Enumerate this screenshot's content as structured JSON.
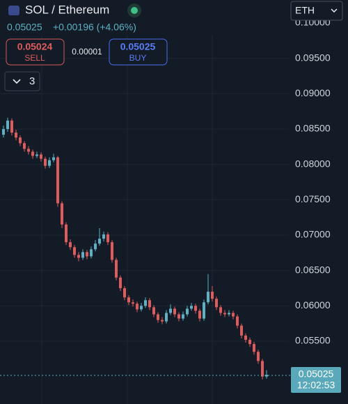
{
  "header": {
    "title": "SOL / Ethereum",
    "price": "0.05025",
    "change": "+0.00196 (+4.06%)",
    "sell_price": "0.05024",
    "sell_label": "SELL",
    "spread": "0.00001",
    "buy_price": "0.05025",
    "buy_label": "BUY",
    "interval": "3",
    "currency": "ETH",
    "price_tag": "0.05025",
    "time_tag": "12:02:53"
  },
  "chart_data": {
    "type": "candlestick",
    "up_color": "#5eb0c2",
    "down_color": "#e05c5c",
    "grid": true,
    "ylim": [
      0.04612,
      0.10325
    ],
    "yticks": [
      {
        "value": 0.1,
        "label": "0.10000"
      },
      {
        "value": 0.095,
        "label": "0.09500"
      },
      {
        "value": 0.09,
        "label": "0.09000"
      },
      {
        "value": 0.085,
        "label": "0.08500"
      },
      {
        "value": 0.08,
        "label": "0.08000"
      },
      {
        "value": 0.075,
        "label": "0.07500"
      },
      {
        "value": 0.07,
        "label": "0.07000"
      },
      {
        "value": 0.065,
        "label": "0.06500"
      },
      {
        "value": 0.06,
        "label": "0.06000"
      },
      {
        "value": 0.055,
        "label": "0.05500"
      }
    ],
    "open": [
      0.0842,
      0.085,
      0.0862,
      0.0845,
      0.0838,
      0.083,
      0.0822,
      0.0818,
      0.0812,
      0.0814,
      0.0808,
      0.0798,
      0.0806,
      0.081,
      0.0745,
      0.0715,
      0.069,
      0.0683,
      0.0672,
      0.0668,
      0.0676,
      0.067,
      0.068,
      0.0688,
      0.0695,
      0.0701,
      0.069,
      0.0665,
      0.064,
      0.0625,
      0.0612,
      0.0605,
      0.0603,
      0.0595,
      0.06,
      0.0608,
      0.0598,
      0.0588,
      0.058,
      0.0578,
      0.059,
      0.0596,
      0.0588,
      0.0582,
      0.0588,
      0.0596,
      0.06,
      0.0593,
      0.0582,
      0.0605,
      0.062,
      0.061,
      0.0598,
      0.059,
      0.0588,
      0.059,
      0.0585,
      0.0572,
      0.0558,
      0.0552,
      0.0546,
      0.0535,
      0.0522,
      0.05
    ],
    "high": [
      0.0855,
      0.0866,
      0.0865,
      0.0849,
      0.0841,
      0.0833,
      0.0826,
      0.0821,
      0.0818,
      0.0817,
      0.0811,
      0.081,
      0.0815,
      0.0812,
      0.0748,
      0.0718,
      0.0694,
      0.0686,
      0.0676,
      0.068,
      0.0679,
      0.0684,
      0.0693,
      0.071,
      0.0705,
      0.0704,
      0.0693,
      0.0668,
      0.0643,
      0.0628,
      0.0615,
      0.0609,
      0.0606,
      0.0604,
      0.0612,
      0.0611,
      0.0601,
      0.0591,
      0.0584,
      0.0594,
      0.0602,
      0.0599,
      0.0591,
      0.0592,
      0.06,
      0.0604,
      0.0603,
      0.0596,
      0.0609,
      0.0645,
      0.0628,
      0.0613,
      0.0601,
      0.0594,
      0.0594,
      0.0593,
      0.0588,
      0.0575,
      0.0561,
      0.0555,
      0.0549,
      0.0538,
      0.0525,
      0.0509
    ],
    "low": [
      0.0838,
      0.0846,
      0.0841,
      0.0834,
      0.0826,
      0.0818,
      0.0814,
      0.0808,
      0.0809,
      0.0804,
      0.0794,
      0.0795,
      0.0803,
      0.074,
      0.071,
      0.0686,
      0.0679,
      0.0668,
      0.0663,
      0.0665,
      0.0666,
      0.0667,
      0.0677,
      0.0685,
      0.0691,
      0.0686,
      0.0661,
      0.0636,
      0.0621,
      0.0608,
      0.0601,
      0.0599,
      0.0591,
      0.0592,
      0.0597,
      0.0594,
      0.0584,
      0.0576,
      0.0574,
      0.0575,
      0.0587,
      0.0584,
      0.0578,
      0.0579,
      0.0585,
      0.0593,
      0.0589,
      0.0578,
      0.0579,
      0.0602,
      0.0606,
      0.0594,
      0.0586,
      0.0584,
      0.0585,
      0.0581,
      0.0568,
      0.0554,
      0.0548,
      0.0542,
      0.0531,
      0.0518,
      0.0496,
      0.0497
    ],
    "close": [
      0.085,
      0.0862,
      0.0845,
      0.0838,
      0.083,
      0.0822,
      0.0818,
      0.0812,
      0.0814,
      0.0808,
      0.0798,
      0.0806,
      0.081,
      0.0745,
      0.0715,
      0.069,
      0.0683,
      0.0672,
      0.0668,
      0.0676,
      0.067,
      0.068,
      0.0688,
      0.0695,
      0.0701,
      0.069,
      0.0665,
      0.064,
      0.0625,
      0.0612,
      0.0605,
      0.0603,
      0.0595,
      0.06,
      0.0608,
      0.0598,
      0.0588,
      0.058,
      0.0578,
      0.059,
      0.0596,
      0.0588,
      0.0582,
      0.0588,
      0.0596,
      0.06,
      0.0593,
      0.0582,
      0.0605,
      0.062,
      0.061,
      0.0598,
      0.059,
      0.0588,
      0.059,
      0.0585,
      0.0572,
      0.0558,
      0.0552,
      0.0546,
      0.0535,
      0.0522,
      0.05,
      0.05025
    ]
  }
}
